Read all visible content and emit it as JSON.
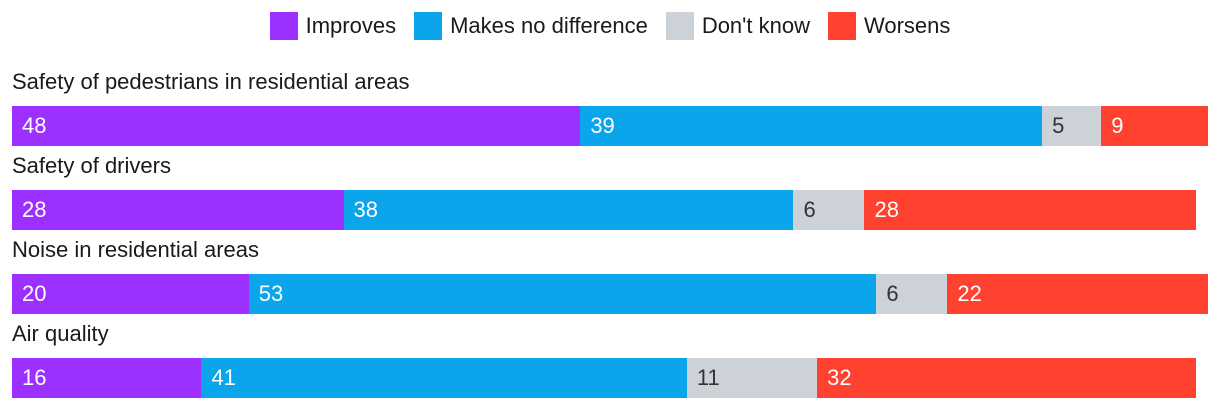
{
  "chart_data": {
    "type": "bar",
    "orientation": "horizontal",
    "stacked": true,
    "legend_position": "top",
    "categories": [
      "Safety of pedestrians in residential areas",
      "Safety of drivers",
      "Noise in residential areas",
      "Air quality"
    ],
    "series": [
      {
        "name": "Improves",
        "color": "#9b30ff",
        "text_color": "#ffffff",
        "values": [
          48,
          28,
          20,
          16
        ]
      },
      {
        "name": "Makes no difference",
        "color": "#0aa5ea",
        "text_color": "#ffffff",
        "values": [
          39,
          38,
          53,
          41
        ]
      },
      {
        "name": "Don't know",
        "color": "#cdd1d8",
        "text_color": "#333333",
        "values": [
          5,
          6,
          6,
          11
        ]
      },
      {
        "name": "Worsens",
        "color": "#ff4130",
        "text_color": "#ffffff",
        "values": [
          9,
          28,
          22,
          32
        ]
      }
    ]
  }
}
